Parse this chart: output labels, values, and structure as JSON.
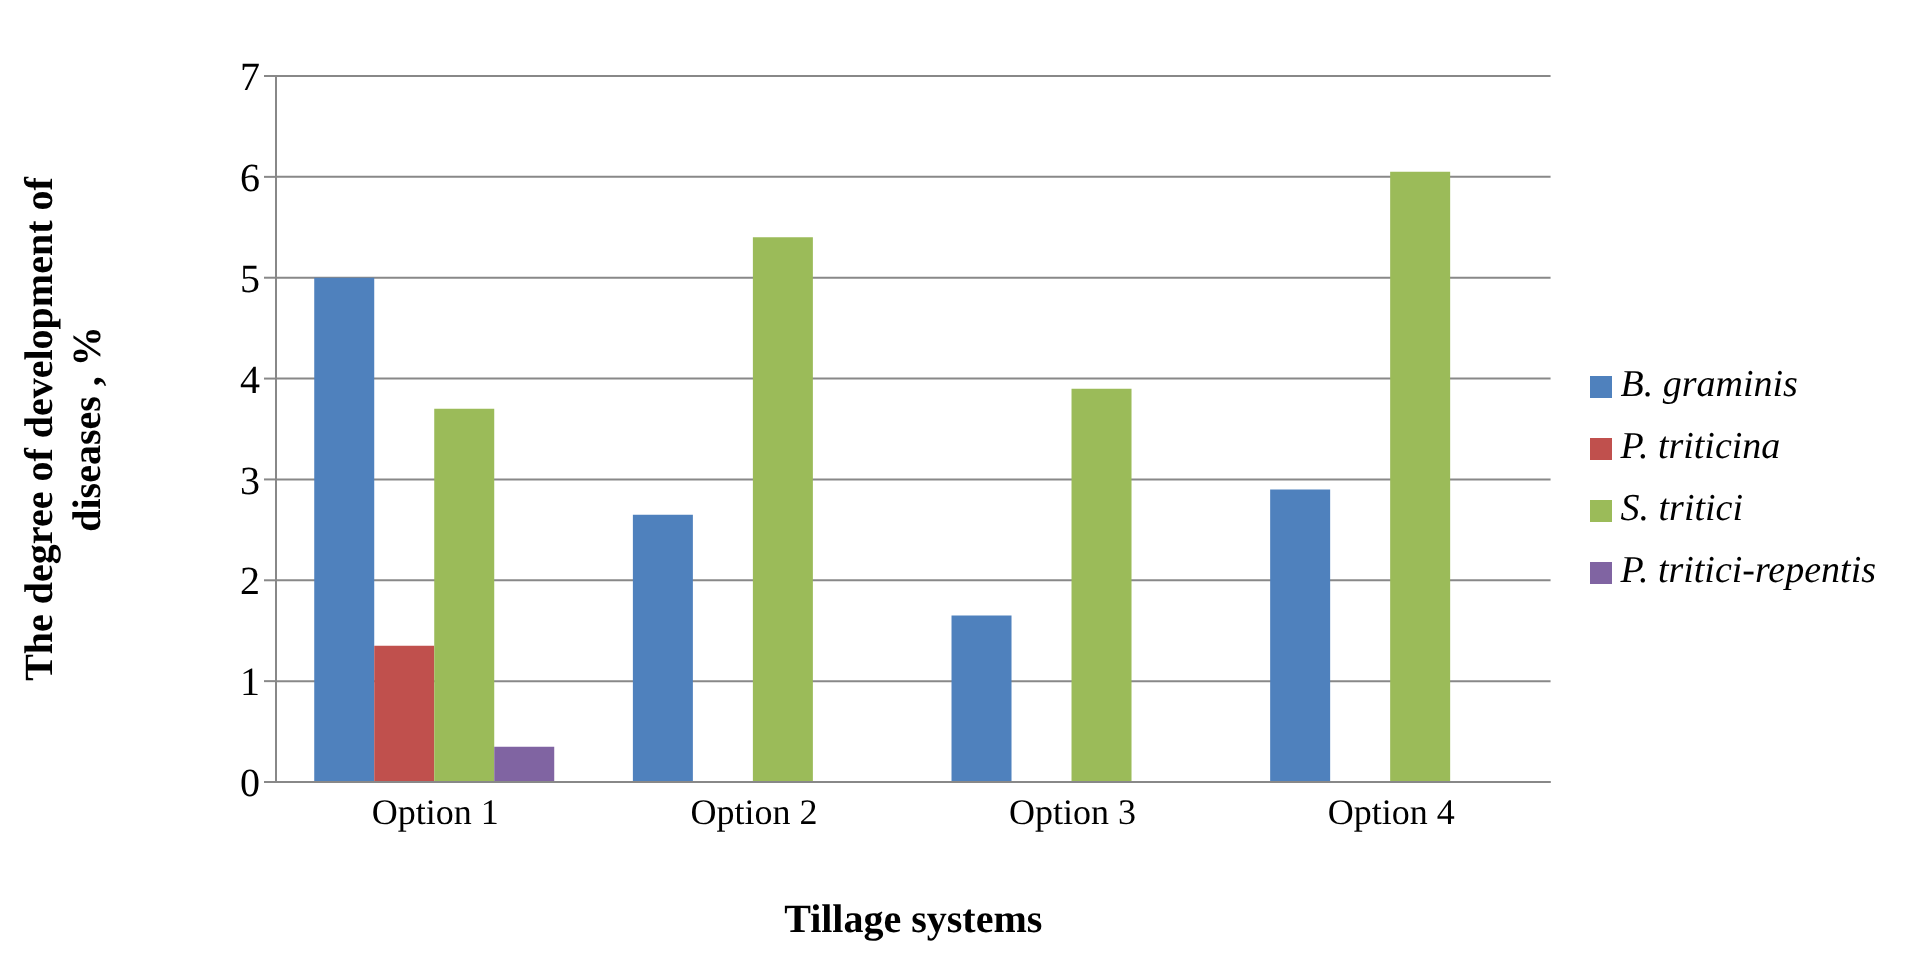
{
  "chart_data": {
    "type": "bar",
    "xlabel": "Tillage systems",
    "ylabel": "The degree of development of diseases , %",
    "categories": [
      "Option 1",
      "Option 2",
      "Option 3",
      "Option 4"
    ],
    "series": [
      {
        "name": "B. graminis",
        "color": "#4f81bd",
        "values": [
          5.0,
          2.65,
          1.65,
          2.9
        ]
      },
      {
        "name": "P. triticina",
        "color": "#c0504d",
        "values": [
          1.35,
          null,
          null,
          null
        ]
      },
      {
        "name": "S. tritici",
        "color": "#9bbb59",
        "values": [
          3.7,
          5.4,
          3.9,
          6.05
        ]
      },
      {
        "name": "P. tritici-repentis",
        "color": "#8064a2",
        "values": [
          0.35,
          null,
          null,
          null
        ]
      }
    ],
    "ylim": [
      0,
      7
    ],
    "yticks": [
      0,
      1,
      2,
      3,
      4,
      5,
      6,
      7
    ],
    "grid": "y",
    "legend": "right"
  }
}
